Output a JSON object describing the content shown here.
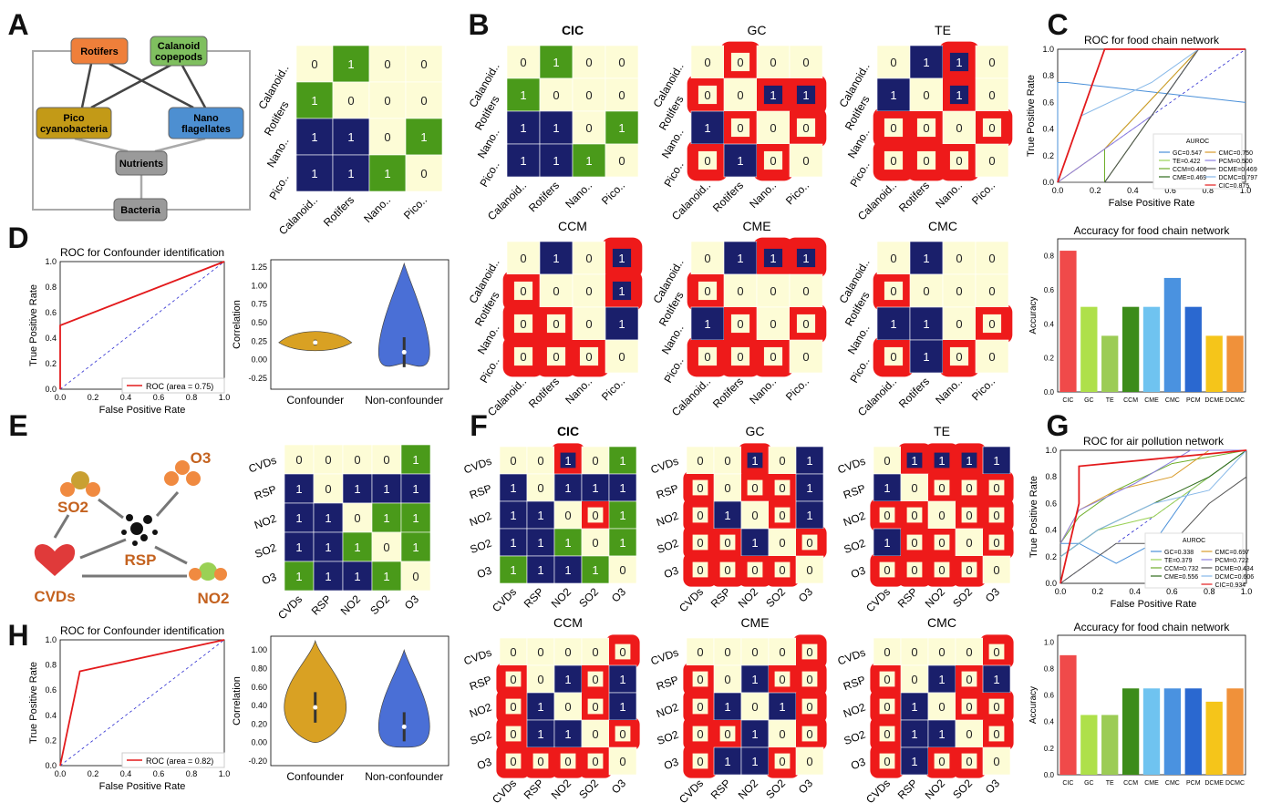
{
  "panel_letters": [
    "A",
    "B",
    "C",
    "D",
    "E",
    "F",
    "G",
    "H"
  ],
  "diagram_food": {
    "nodes": [
      {
        "key": "rot",
        "label": [
          "Rotifers"
        ]
      },
      {
        "key": "cal",
        "label": [
          "Calanoid",
          "copepods"
        ]
      },
      {
        "key": "pico",
        "label": [
          "Pico",
          "cyanobacteria"
        ]
      },
      {
        "key": "nano",
        "label": [
          "Nano",
          "flagellates"
        ]
      },
      {
        "key": "nut",
        "label": [
          "Nutrients"
        ]
      },
      {
        "key": "bac",
        "label": [
          "Bacteria"
        ]
      }
    ],
    "colors": {
      "rot": "#ef7f3a",
      "cal": "#7fbf5f",
      "pico": "#c39a17",
      "nano": "#4d8fd1",
      "nut": "#9a9a9a",
      "bac": "#9a9a9a"
    }
  },
  "diagram_air": {
    "labels": {
      "so2": "SO2",
      "o3": "O3",
      "rsp": "RSP",
      "cvds": "CVDs",
      "no2": "NO2"
    }
  },
  "food_labels": [
    "Calanoid..",
    "Rotifers",
    "Nano..",
    "Pico.."
  ],
  "air_labels": [
    "CVDs",
    "RSP",
    "NO2",
    "SO2",
    "O3"
  ],
  "food_gt": [
    [
      0,
      1,
      0,
      0
    ],
    [
      1,
      0,
      0,
      0
    ],
    [
      1,
      1,
      0,
      1
    ],
    [
      1,
      1,
      1,
      0
    ]
  ],
  "air_gt": [
    [
      0,
      0,
      0,
      0,
      1
    ],
    [
      1,
      0,
      1,
      1,
      1
    ],
    [
      1,
      1,
      0,
      1,
      1
    ],
    [
      1,
      1,
      1,
      0,
      1
    ],
    [
      1,
      1,
      1,
      1,
      0
    ]
  ],
  "food_methods": [
    {
      "name": "CIC",
      "matrix": [
        [
          0,
          1,
          0,
          0
        ],
        [
          1,
          0,
          0,
          0
        ],
        [
          1,
          1,
          0,
          1
        ],
        [
          1,
          1,
          1,
          0
        ]
      ]
    },
    {
      "name": "GC",
      "matrix": [
        [
          0,
          0,
          0,
          0
        ],
        [
          0,
          0,
          1,
          1
        ],
        [
          1,
          0,
          0,
          0
        ],
        [
          0,
          1,
          0,
          0
        ]
      ]
    },
    {
      "name": "TE",
      "matrix": [
        [
          0,
          1,
          1,
          0
        ],
        [
          1,
          0,
          1,
          0
        ],
        [
          0,
          0,
          0,
          0
        ],
        [
          0,
          0,
          0,
          0
        ]
      ]
    },
    {
      "name": "CCM",
      "matrix": [
        [
          0,
          1,
          0,
          1
        ],
        [
          0,
          0,
          0,
          1
        ],
        [
          0,
          0,
          0,
          1
        ],
        [
          0,
          0,
          0,
          0
        ]
      ]
    },
    {
      "name": "CME",
      "matrix": [
        [
          0,
          1,
          1,
          1
        ],
        [
          0,
          0,
          0,
          0
        ],
        [
          1,
          0,
          0,
          0
        ],
        [
          0,
          0,
          0,
          0
        ]
      ]
    },
    {
      "name": "CMC",
      "matrix": [
        [
          0,
          1,
          0,
          0
        ],
        [
          0,
          0,
          0,
          0
        ],
        [
          1,
          1,
          0,
          0
        ],
        [
          0,
          1,
          0,
          0
        ]
      ]
    }
  ],
  "air_methods": [
    {
      "name": "CIC",
      "matrix": [
        [
          0,
          0,
          1,
          0,
          1
        ],
        [
          1,
          0,
          1,
          1,
          1
        ],
        [
          1,
          1,
          0,
          0,
          1
        ],
        [
          1,
          1,
          1,
          0,
          1
        ],
        [
          1,
          1,
          1,
          1,
          0
        ]
      ]
    },
    {
      "name": "GC",
      "matrix": [
        [
          0,
          0,
          1,
          0,
          1
        ],
        [
          0,
          0,
          0,
          0,
          1
        ],
        [
          0,
          1,
          0,
          0,
          1
        ],
        [
          0,
          0,
          1,
          0,
          0
        ],
        [
          0,
          0,
          0,
          0,
          0
        ]
      ]
    },
    {
      "name": "TE",
      "matrix": [
        [
          0,
          1,
          1,
          1,
          1
        ],
        [
          1,
          0,
          0,
          0,
          0
        ],
        [
          0,
          0,
          0,
          0,
          0
        ],
        [
          1,
          0,
          0,
          0,
          0
        ],
        [
          0,
          0,
          0,
          0,
          0
        ]
      ]
    },
    {
      "name": "CCM",
      "matrix": [
        [
          0,
          0,
          0,
          0,
          0
        ],
        [
          0,
          0,
          1,
          0,
          1
        ],
        [
          0,
          1,
          0,
          0,
          1
        ],
        [
          0,
          1,
          1,
          0,
          0
        ],
        [
          0,
          0,
          0,
          0,
          0
        ]
      ]
    },
    {
      "name": "CME",
      "matrix": [
        [
          0,
          0,
          0,
          0,
          0
        ],
        [
          0,
          0,
          1,
          0,
          0
        ],
        [
          0,
          1,
          0,
          1,
          0
        ],
        [
          0,
          0,
          1,
          0,
          0
        ],
        [
          0,
          1,
          1,
          0,
          0
        ]
      ]
    },
    {
      "name": "CMC",
      "matrix": [
        [
          0,
          0,
          0,
          0,
          0
        ],
        [
          0,
          0,
          1,
          0,
          1
        ],
        [
          0,
          1,
          0,
          0,
          0
        ],
        [
          0,
          1,
          1,
          0,
          0
        ],
        [
          0,
          1,
          0,
          0,
          0
        ]
      ]
    }
  ],
  "chart_data": [
    {
      "panel": "C",
      "type": "line",
      "title": "ROC for food chain network",
      "xlabel": "False Positive Rate",
      "ylabel": "True Positive Rate",
      "xlim": [
        0,
        1
      ],
      "ylim": [
        0,
        1
      ],
      "legend_title": "AUROC",
      "series": [
        {
          "name": "GC=0.547",
          "color": "#4a90d9",
          "x": [
            0,
            0,
            0.05,
            0.05,
            0.05,
            1
          ],
          "y": [
            0,
            0.75,
            0.75,
            0.75,
            0.75,
            0.6
          ]
        },
        {
          "name": "TE=0.422",
          "color": "#9ad155",
          "x": [
            0,
            0.25,
            0.5,
            0.75,
            1
          ],
          "y": [
            0,
            0,
            0.5,
            1,
            1
          ]
        },
        {
          "name": "CCM=0.406",
          "color": "#6fae2a",
          "x": [
            0,
            0.25,
            0.25,
            0.75,
            1
          ],
          "y": [
            0,
            0,
            0.25,
            1,
            1
          ]
        },
        {
          "name": "CME=0.469",
          "color": "#2e6b1a",
          "x": [
            0,
            0.25,
            0.5,
            0.75,
            1
          ],
          "y": [
            0,
            0,
            0.5,
            1,
            1
          ]
        },
        {
          "name": "CMC=0.750",
          "color": "#d89b2a",
          "x": [
            0,
            0.25,
            0.75,
            1
          ],
          "y": [
            0,
            0.25,
            1,
            1
          ]
        },
        {
          "name": "PCM=0.500",
          "color": "#8c7ee0",
          "x": [
            0,
            0.5,
            0.75,
            1
          ],
          "y": [
            0,
            0.5,
            1,
            1
          ]
        },
        {
          "name": "DCME=0.469",
          "color": "#555555",
          "x": [
            0,
            0.25,
            0.75,
            1
          ],
          "y": [
            0,
            0,
            1,
            1
          ]
        },
        {
          "name": "DCMC=0.797",
          "color": "#86b8e8",
          "x": [
            0,
            0.125,
            0.5,
            0.75,
            1
          ],
          "y": [
            0,
            0.5,
            0.75,
            1,
            1
          ]
        },
        {
          "name": "CIC=0.875",
          "color": "#e31a1c",
          "x": [
            0,
            0.25,
            0.25,
            1
          ],
          "y": [
            0,
            1,
            1,
            1
          ]
        }
      ]
    },
    {
      "panel": "D",
      "type": "line",
      "title": "ROC for Confounder identification",
      "xlabel": "False Positive Rate",
      "ylabel": "True Positive Rate",
      "xlim": [
        0,
        1
      ],
      "ylim": [
        0,
        1
      ],
      "series": [
        {
          "name": "ROC (area = 0.75)",
          "color": "#e31a1c",
          "x": [
            0,
            0,
            1
          ],
          "y": [
            0,
            0.5,
            1
          ]
        }
      ]
    },
    {
      "panel": "D-violin",
      "type": "violin",
      "ylabel": "Correlation",
      "categories": [
        "Confounder",
        "Non-confounder"
      ],
      "ylim": [
        -0.4,
        1.35
      ],
      "series": [
        {
          "name": "Confounder",
          "color": "#d9a123",
          "min": 0.12,
          "max": 0.38,
          "median": 0.23
        },
        {
          "name": "Non-confounder",
          "color": "#4a6fd6",
          "min": -0.05,
          "max": 1.3,
          "median": 0.1
        }
      ]
    },
    {
      "panel": "C-acc",
      "type": "bar",
      "title": "Accuracy for food chain network",
      "ylabel": "Accuracy",
      "ylim": [
        0,
        0.9
      ],
      "categories": [
        "CIC",
        "GC",
        "TE",
        "CCM",
        "CME",
        "CMC",
        "PCM",
        "DCME",
        "DCMC"
      ],
      "values": [
        0.83,
        0.5,
        0.33,
        0.5,
        0.5,
        0.67,
        0.5,
        0.33,
        0.33
      ],
      "colors": [
        "#f04a4a",
        "#aee04a",
        "#9ccc55",
        "#3c8c1a",
        "#6fc3f0",
        "#4a92e0",
        "#2a68d0",
        "#f5c51a",
        "#f0913a"
      ]
    },
    {
      "panel": "G",
      "type": "line",
      "title": "ROC for air pollution network",
      "xlabel": "False Positive Rate",
      "ylabel": "True Positive Rate",
      "xlim": [
        0,
        1
      ],
      "ylim": [
        0,
        1
      ],
      "legend_title": "AUROC",
      "series": [
        {
          "name": "GC=0.338",
          "color": "#4a90d9",
          "x": [
            0,
            0.1,
            0.3,
            0.5,
            0.7,
            1
          ],
          "y": [
            0.3,
            0.3,
            0.15,
            0.3,
            0.7,
            1
          ]
        },
        {
          "name": "TE=0.379",
          "color": "#9ad155",
          "x": [
            0,
            0.2,
            0.5,
            0.8,
            1
          ],
          "y": [
            0.2,
            0.4,
            0.5,
            0.8,
            1
          ]
        },
        {
          "name": "CCM=0.732",
          "color": "#6fae2a",
          "x": [
            0,
            0.1,
            0.3,
            0.6,
            1
          ],
          "y": [
            0.3,
            0.5,
            0.7,
            0.9,
            1
          ]
        },
        {
          "name": "CME=0.556",
          "color": "#2e6b1a",
          "x": [
            0,
            0.2,
            0.5,
            0.8,
            1
          ],
          "y": [
            0.2,
            0.4,
            0.6,
            0.8,
            1
          ]
        },
        {
          "name": "CMC=0.697",
          "color": "#d89b2a",
          "x": [
            0,
            0.1,
            0.3,
            0.6,
            0.8,
            1
          ],
          "y": [
            0.3,
            0.55,
            0.7,
            0.8,
            1,
            1
          ]
        },
        {
          "name": "PCM=0.722",
          "color": "#8c7ee0",
          "x": [
            0,
            0.1,
            0.4,
            0.7,
            1
          ],
          "y": [
            0.3,
            0.55,
            0.75,
            1,
            1
          ]
        },
        {
          "name": "DCME=0.434",
          "color": "#555555",
          "x": [
            0,
            0.3,
            0.6,
            0.8,
            1
          ],
          "y": [
            0,
            0.3,
            0.3,
            0.6,
            0.8
          ]
        },
        {
          "name": "DCMC=0.606",
          "color": "#86b8e8",
          "x": [
            0,
            0.2,
            0.5,
            0.8,
            1
          ],
          "y": [
            0.2,
            0.4,
            0.6,
            0.7,
            1
          ]
        },
        {
          "name": "CIC=0.934",
          "color": "#e31a1c",
          "x": [
            0,
            0.05,
            0.1,
            0.1,
            1
          ],
          "y": [
            0,
            0.3,
            0.6,
            0.88,
            1
          ]
        }
      ]
    },
    {
      "panel": "H",
      "type": "line",
      "title": "ROC for Confounder identification",
      "xlabel": "False Positive Rate",
      "ylabel": "True Positive Rate",
      "xlim": [
        0,
        1
      ],
      "ylim": [
        0,
        1
      ],
      "series": [
        {
          "name": "ROC (area = 0.82)",
          "color": "#e31a1c",
          "x": [
            0,
            0.12,
            1
          ],
          "y": [
            0,
            0.75,
            1
          ]
        }
      ]
    },
    {
      "panel": "H-violin",
      "type": "violin",
      "ylabel": "Correlation",
      "categories": [
        "Confounder",
        "Non-confounder"
      ],
      "ylim": [
        -0.25,
        1.15
      ],
      "series": [
        {
          "name": "Confounder",
          "color": "#d9a123",
          "min": 0.0,
          "max": 1.1,
          "median": 0.38
        },
        {
          "name": "Non-confounder",
          "color": "#4a6fd6",
          "min": -0.05,
          "max": 1.0,
          "median": 0.17
        }
      ]
    },
    {
      "panel": "G-acc",
      "type": "bar",
      "title": "Accuracy for food chain network",
      "ylabel": "Accuracy",
      "ylim": [
        0,
        1.05
      ],
      "categories": [
        "CIC",
        "GC",
        "TE",
        "CCM",
        "CME",
        "CMC",
        "PCM",
        "DCME",
        "DCMC"
      ],
      "values": [
        0.9,
        0.45,
        0.45,
        0.65,
        0.65,
        0.65,
        0.65,
        0.55,
        0.65
      ],
      "colors": [
        "#f04a4a",
        "#aee04a",
        "#9ccc55",
        "#3c8c1a",
        "#6fc3f0",
        "#4a92e0",
        "#2a68d0",
        "#f5c51a",
        "#f0913a"
      ]
    }
  ],
  "colors": {
    "cream": "#fdfcd6",
    "navy": "#1a1f6b",
    "green": "#4a9a1a",
    "red": "#ee1a1a"
  }
}
